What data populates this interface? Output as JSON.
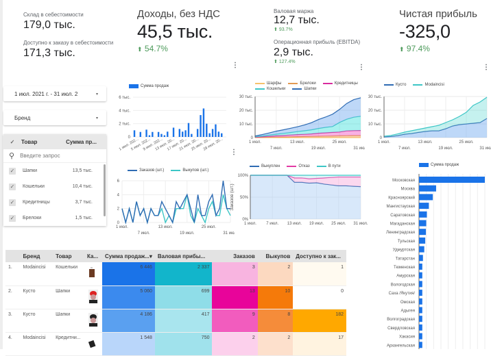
{
  "kpis": {
    "stock_cost": {
      "label": "Склад в себестоимости",
      "value": "179,0 тыс."
    },
    "available_cost": {
      "label": "Доступно к заказу в себестоимости",
      "value": "171,3 тыс."
    },
    "revenue": {
      "label": "Доходы, без НДС",
      "value": "45,5 тыс.",
      "delta": "54.7%"
    },
    "gross_margin": {
      "label": "Валовая маржа",
      "value": "12,7 тыс.",
      "delta": "93.7%"
    },
    "ebitda": {
      "label": "Операционная прибыль (EBITDA)",
      "value": "2,9 тыс.",
      "delta": "127.4%"
    },
    "net_profit": {
      "label": "Чистая прибыль",
      "value": "-325,0",
      "delta": "97.4%"
    }
  },
  "colors": {
    "positive": "#4c9a5a",
    "bar_blue": "#1a73e8",
    "teal": "#1ab3c6",
    "magenta": "#e6009c",
    "orange": "#f37a10"
  },
  "filters": {
    "date_range": "1 июл. 2021 г. - 31 июл. 2",
    "brand": "Бренд",
    "product_table": {
      "col_product": "Товар",
      "col_sum": "Сумма пр...",
      "search_placeholder": "Введите запрос",
      "rows": [
        {
          "label": "Шапки",
          "value": "13,5 тыс."
        },
        {
          "label": "Кошельки",
          "value": "10,4 тыс."
        },
        {
          "label": "Кредитницы",
          "value": "3,7 тыс."
        },
        {
          "label": "Брелоки",
          "value": "1,5 тыс."
        }
      ]
    }
  },
  "chart_data": [
    {
      "type": "bar",
      "title": "",
      "legend": [
        "Сумма продаж"
      ],
      "xlabel": "",
      "ylabel": "",
      "ylim": [
        0,
        6000
      ],
      "yticks": [
        "0",
        "2 тыс.",
        "4 тыс.",
        "6 тыс."
      ],
      "xtick_labels": [
        "1 июл. 202...",
        "5 июл. 202...",
        "9 июл. 202...",
        "13 июл. 20...",
        "17 июл. 20...",
        "21 июл. 20...",
        "25 июл. 20...",
        "29 июл. 20..."
      ],
      "categories": [
        "1",
        "2",
        "3",
        "4",
        "5",
        "6",
        "7",
        "8",
        "9",
        "10",
        "11",
        "12",
        "13",
        "14",
        "15",
        "16",
        "17",
        "18",
        "19",
        "20",
        "21",
        "22",
        "23",
        "24",
        "25",
        "26",
        "27",
        "28",
        "29",
        "30",
        "31"
      ],
      "values": [
        1000,
        0,
        750,
        0,
        1100,
        250,
        750,
        0,
        750,
        450,
        250,
        800,
        0,
        1400,
        0,
        1200,
        800,
        1000,
        2100,
        450,
        0,
        1200,
        3300,
        4300,
        2000,
        550,
        1200,
        1900,
        800,
        550,
        0
      ]
    },
    {
      "type": "area",
      "stacked": true,
      "legend": [
        "Шарфы",
        "Брелоки",
        "Кредитницы",
        "Кошельки",
        "Шапки"
      ],
      "ylim": [
        0,
        30000
      ],
      "yticks": [
        "0",
        "10 тыс.",
        "20 тыс.",
        "30 тыс."
      ],
      "xticks_top": [
        "1 июл.",
        "13 июл.",
        "25 июл."
      ],
      "xticks_bottom": [
        "7 июл.",
        "19 июл.",
        "31 июл."
      ],
      "x": [
        1,
        3,
        5,
        7,
        9,
        11,
        13,
        15,
        17,
        19,
        21,
        23,
        25,
        27,
        29,
        31
      ],
      "series": [
        {
          "name": "Шарфы",
          "color": "#f6c26b",
          "values": [
            0,
            0,
            0,
            0,
            0,
            0,
            0,
            0,
            0,
            0,
            0,
            0,
            0,
            0,
            0,
            0
          ]
        },
        {
          "name": "Брелоки",
          "color": "#e39a52",
          "values": [
            100,
            200,
            300,
            400,
            500,
            600,
            700,
            800,
            900,
            1000,
            1100,
            1200,
            1300,
            1400,
            1500,
            1500
          ]
        },
        {
          "name": "Кредитницы",
          "color": "#d82a9e",
          "values": [
            200,
            400,
            700,
            900,
            1100,
            1300,
            1500,
            1600,
            1800,
            2200,
            2400,
            2600,
            2800,
            3500,
            3600,
            3700
          ]
        },
        {
          "name": "Кошельки",
          "color": "#3cc6c6",
          "values": [
            300,
            600,
            900,
            1200,
            1500,
            1800,
            2200,
            2600,
            3000,
            3500,
            4000,
            4300,
            7000,
            8500,
            9800,
            10400
          ]
        },
        {
          "name": "Шапки",
          "color": "#2e6bb3",
          "values": [
            600,
            1000,
            1500,
            2200,
            2600,
            3100,
            3500,
            4200,
            5200,
            6500,
            7500,
            9000,
            9500,
            11500,
            12800,
            13500
          ]
        }
      ]
    },
    {
      "type": "area",
      "stacked": true,
      "legend": [
        "Кусто",
        "Modaincisi"
      ],
      "ylim": [
        0,
        30000
      ],
      "yticks": [
        "0",
        "10 тыс.",
        "20 тыс.",
        "30 тыс."
      ],
      "xticks_top": [
        "1 июл.",
        "13 июл.",
        "25 июл."
      ],
      "xticks_bottom": [
        "7 июл.",
        "19 июл.",
        "31 июл."
      ],
      "x": [
        1,
        3,
        5,
        7,
        9,
        11,
        13,
        15,
        17,
        19,
        21,
        23,
        25,
        27,
        29,
        31
      ],
      "series": [
        {
          "name": "Кусто",
          "color": "#2e6bb3",
          "values": [
            500,
            800,
            1500,
            2500,
            3000,
            3800,
            4500,
            5000,
            5000,
            6500,
            8500,
            9500,
            10000,
            10500,
            11000,
            14000
          ]
        },
        {
          "name": "Modaincisi",
          "color": "#3cc6c6",
          "values": [
            500,
            800,
            1200,
            1500,
            2000,
            2200,
            2500,
            3000,
            4000,
            4500,
            4500,
            6000,
            8500,
            13000,
            15000,
            15500
          ]
        }
      ]
    },
    {
      "type": "line",
      "legend": [
        "Заказов (шт.)",
        "Выкупов (шт.)"
      ],
      "ylim": [
        0,
        6
      ],
      "yticks": [
        "0",
        "2",
        "4",
        "6"
      ],
      "ylabel_right": "Заказов (шт.)",
      "xticks_top": [
        "1 июл.",
        "13 июл.",
        "25 июл."
      ],
      "xticks_bottom": [
        "7 июл.",
        "19 июл.",
        "31 июл."
      ],
      "x": [
        1,
        2,
        3,
        4,
        5,
        6,
        7,
        8,
        9,
        10,
        11,
        12,
        13,
        14,
        15,
        16,
        17,
        18,
        19,
        20,
        21,
        22,
        23,
        24,
        25,
        26,
        27,
        28,
        29,
        30,
        31
      ],
      "series": [
        {
          "name": "Заказов (шт.)",
          "color": "#2e6bb3",
          "values": [
            2,
            0,
            2,
            0,
            3,
            1,
            2,
            0,
            2,
            1,
            1,
            3,
            2,
            1,
            0,
            3,
            2,
            3,
            4,
            2,
            0,
            4,
            1,
            1,
            3,
            4,
            1,
            2,
            6,
            2,
            2
          ]
        },
        {
          "name": "Выкупов (шт.)",
          "color": "#3cc6c6",
          "values": [
            2,
            0,
            2,
            0,
            3,
            1,
            2,
            0,
            2,
            1,
            1,
            2,
            0,
            1,
            0,
            2,
            2,
            2,
            4,
            1,
            0,
            2,
            1,
            0,
            2,
            3,
            1,
            1,
            4,
            2,
            1
          ]
        }
      ]
    },
    {
      "type": "area",
      "stacked": true,
      "percent": true,
      "legend": [
        "Выкуплен",
        "Отказ",
        "В пути"
      ],
      "ylim": [
        0,
        100
      ],
      "yticks": [
        "0%",
        "50%",
        "100%"
      ],
      "ylabel": "Заказов (шт.)",
      "xticks": [
        "1 июл.",
        "7 июл.",
        "13 июл.",
        "19 июл.",
        "25 июл.",
        "31 июл."
      ],
      "x": [
        1,
        3,
        5,
        7,
        9,
        11,
        12,
        13,
        15,
        17,
        19,
        21,
        23,
        25,
        27,
        29,
        31
      ],
      "series": [
        {
          "name": "Выкуплен",
          "color": "#2e6bb3",
          "values": [
            100,
            100,
            100,
            100,
            100,
            100,
            92,
            84,
            84,
            82,
            83,
            80,
            78,
            76,
            76,
            75,
            74
          ]
        },
        {
          "name": "Отказ",
          "color": "#e23aa4",
          "values": [
            0,
            0,
            0,
            0,
            0,
            0,
            5,
            10,
            10,
            10,
            10,
            14,
            17,
            20,
            20,
            21,
            22
          ]
        },
        {
          "name": "В пути",
          "color": "#3cc6c6",
          "values": [
            0,
            0,
            0,
            0,
            0,
            0,
            3,
            6,
            6,
            8,
            7,
            6,
            5,
            4,
            4,
            4,
            4
          ]
        }
      ]
    },
    {
      "type": "bar",
      "orientation": "horizontal",
      "legend": [
        "Сумма продаж"
      ],
      "categories": [
        "Московская",
        "Москва",
        "Красноярский",
        "Мангистауская",
        "Саратовская",
        "Магаданская",
        "Ленинградская",
        "Тульская",
        "Удмуртская",
        "Татарстан",
        "Тюменская",
        "Амурская",
        "Вологодская",
        "Саха /Якутия/",
        "Омская",
        "Адыгея",
        "Волгоградская",
        "Свердловская",
        "Хакасия",
        "Архангельская"
      ],
      "values": [
        100,
        26,
        21,
        15,
        12,
        11,
        10.5,
        9.5,
        8,
        6,
        5,
        5,
        5,
        5,
        5,
        5,
        5,
        5,
        5,
        5
      ]
    }
  ],
  "table": {
    "headers": [
      "",
      "Бренд",
      "Товар",
      "Ка...",
      "Сумма продаж...",
      "Валовая прибы...",
      "Заказов",
      "Выкупов",
      "Доступно к зак..."
    ],
    "sort_indicator": "▾",
    "rows": [
      {
        "idx": "1.",
        "brand": "Modaincisi",
        "product": "Кошельки",
        "thumb": "wallet-brown",
        "sales": "6 446",
        "gross": "2 337",
        "orders": "3",
        "buyouts": "2",
        "available": "1"
      },
      {
        "idx": "2.",
        "brand": "Кусто",
        "product": "Шапки",
        "thumb": "hat-red",
        "sales": "5 060",
        "gross": "699",
        "orders": "13",
        "buyouts": "10",
        "available": "0"
      },
      {
        "idx": "3.",
        "brand": "Кусто",
        "product": "Шапки",
        "thumb": "hat-black",
        "sales": "4 186",
        "gross": "417",
        "orders": "9",
        "buyouts": "8",
        "available": "182"
      },
      {
        "idx": "4.",
        "brand": "Modaincisi",
        "product": "Кредитни...",
        "thumb": "card-holder-black",
        "sales": "1 548",
        "gross": "750",
        "orders": "2",
        "buyouts": "2",
        "available": "17"
      }
    ],
    "cell_colors": {
      "sales": [
        "#1a73e8",
        "#3b8aee",
        "#5aa0f0",
        "#b9d6fa"
      ],
      "gross": [
        "#12b5cb",
        "#8fdde8",
        "#a9e5ee",
        "#a0e2ec"
      ],
      "orders": [
        "#f8b4e0",
        "#e8049a",
        "#f25cbe",
        "#fcd0ec"
      ],
      "buyouts": [
        "#fcd9c0",
        "#f57a0a",
        "#f58c3a",
        "#fde0cc"
      ],
      "available": [
        "#fffaf0",
        "#ffffff",
        "#ffa800",
        "#fff3e0"
      ]
    }
  }
}
